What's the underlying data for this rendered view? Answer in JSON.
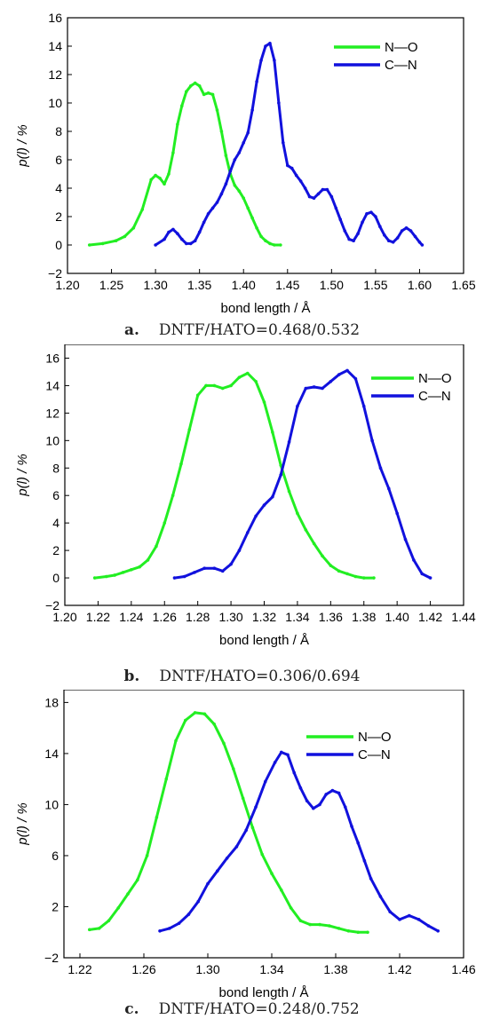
{
  "chart_data": [
    {
      "type": "line",
      "panel_label": "a.",
      "caption": "DNTF/HATO=0.468/0.532",
      "xlabel": "bond length / Å",
      "ylabel": "p(l) / %",
      "xlim": [
        1.2,
        1.65
      ],
      "ylim": [
        -2,
        16
      ],
      "xticks": [
        "1.20",
        "1.25",
        "1.30",
        "1.35",
        "1.40",
        "1.45",
        "1.50",
        "1.55",
        "1.60",
        "1.65"
      ],
      "yticks": [
        "−2",
        "0",
        "2",
        "4",
        "6",
        "8",
        "10",
        "12",
        "14",
        "16"
      ],
      "legend_position": "top-right",
      "series": [
        {
          "name": "N—O",
          "color": "#22ee22",
          "x": [
            1.225,
            1.24,
            1.255,
            1.265,
            1.275,
            1.285,
            1.295,
            1.3,
            1.305,
            1.31,
            1.315,
            1.32,
            1.325,
            1.33,
            1.335,
            1.34,
            1.345,
            1.35,
            1.355,
            1.36,
            1.365,
            1.37,
            1.375,
            1.38,
            1.385,
            1.39,
            1.395,
            1.4,
            1.405,
            1.41,
            1.415,
            1.42,
            1.425,
            1.43,
            1.435,
            1.442
          ],
          "y": [
            0.0,
            0.1,
            0.3,
            0.6,
            1.2,
            2.5,
            4.6,
            4.9,
            4.7,
            4.3,
            5.0,
            6.5,
            8.5,
            9.8,
            10.8,
            11.2,
            11.4,
            11.2,
            10.6,
            10.7,
            10.6,
            9.5,
            8.0,
            6.3,
            5.0,
            4.2,
            3.8,
            3.3,
            2.6,
            1.9,
            1.2,
            0.6,
            0.3,
            0.1,
            0.0,
            0.0
          ]
        },
        {
          "name": "C—N",
          "color": "#1111dd",
          "x": [
            1.3,
            1.31,
            1.315,
            1.32,
            1.325,
            1.33,
            1.335,
            1.34,
            1.345,
            1.35,
            1.355,
            1.36,
            1.365,
            1.37,
            1.375,
            1.38,
            1.385,
            1.39,
            1.395,
            1.4,
            1.405,
            1.41,
            1.415,
            1.42,
            1.425,
            1.43,
            1.435,
            1.44,
            1.445,
            1.45,
            1.455,
            1.46,
            1.465,
            1.47,
            1.475,
            1.48,
            1.485,
            1.49,
            1.495,
            1.5,
            1.505,
            1.51,
            1.515,
            1.52,
            1.525,
            1.53,
            1.535,
            1.54,
            1.545,
            1.55,
            1.555,
            1.56,
            1.565,
            1.57,
            1.575,
            1.58,
            1.585,
            1.59,
            1.595,
            1.6,
            1.603
          ],
          "y": [
            0.0,
            0.4,
            0.9,
            1.1,
            0.8,
            0.4,
            0.1,
            0.1,
            0.3,
            0.9,
            1.6,
            2.2,
            2.6,
            3.0,
            3.6,
            4.3,
            5.2,
            6.0,
            6.5,
            7.2,
            7.9,
            9.5,
            11.5,
            13.0,
            14.0,
            14.2,
            13.0,
            10.0,
            7.2,
            5.6,
            5.4,
            4.9,
            4.5,
            4.0,
            3.4,
            3.3,
            3.6,
            3.9,
            3.9,
            3.4,
            2.6,
            1.8,
            1.0,
            0.4,
            0.3,
            0.8,
            1.6,
            2.2,
            2.3,
            2.0,
            1.3,
            0.7,
            0.3,
            0.2,
            0.5,
            1.0,
            1.2,
            1.0,
            0.6,
            0.2,
            0.0
          ]
        }
      ]
    },
    {
      "type": "line",
      "panel_label": "b.",
      "caption": "DNTF/HATO=0.306/0.694",
      "xlabel": "bond length / Å",
      "ylabel": "p(l) / %",
      "xlim": [
        1.2,
        1.44
      ],
      "ylim": [
        -2,
        17
      ],
      "xticks": [
        "1.20",
        "1.22",
        "1.24",
        "1.26",
        "1.28",
        "1.30",
        "1.32",
        "1.34",
        "1.36",
        "1.38",
        "1.40",
        "1.42",
        "1.44"
      ],
      "yticks": [
        "−2",
        "0",
        "2",
        "4",
        "6",
        "8",
        "10",
        "12",
        "14",
        "16"
      ],
      "legend_position": "top-right",
      "series": [
        {
          "name": "N—O",
          "color": "#22ee22",
          "x": [
            1.218,
            1.225,
            1.23,
            1.235,
            1.24,
            1.245,
            1.25,
            1.255,
            1.26,
            1.265,
            1.27,
            1.275,
            1.28,
            1.285,
            1.29,
            1.295,
            1.3,
            1.305,
            1.31,
            1.315,
            1.32,
            1.325,
            1.33,
            1.335,
            1.34,
            1.345,
            1.35,
            1.355,
            1.36,
            1.365,
            1.37,
            1.375,
            1.38,
            1.386
          ],
          "y": [
            0.0,
            0.1,
            0.2,
            0.4,
            0.6,
            0.8,
            1.3,
            2.3,
            4.0,
            6.0,
            8.3,
            10.8,
            13.3,
            14.0,
            14.0,
            13.8,
            14.0,
            14.6,
            14.9,
            14.3,
            12.8,
            10.6,
            8.2,
            6.3,
            4.7,
            3.5,
            2.5,
            1.6,
            0.9,
            0.5,
            0.3,
            0.1,
            0.0,
            0.0
          ]
        },
        {
          "name": "C—N",
          "color": "#1111dd",
          "x": [
            1.266,
            1.272,
            1.278,
            1.284,
            1.29,
            1.295,
            1.3,
            1.305,
            1.31,
            1.315,
            1.32,
            1.325,
            1.33,
            1.335,
            1.34,
            1.345,
            1.35,
            1.355,
            1.36,
            1.365,
            1.37,
            1.375,
            1.38,
            1.385,
            1.39,
            1.395,
            1.4,
            1.405,
            1.41,
            1.415,
            1.42
          ],
          "y": [
            0.0,
            0.1,
            0.4,
            0.7,
            0.7,
            0.5,
            1.0,
            2.0,
            3.3,
            4.5,
            5.3,
            5.9,
            7.5,
            9.9,
            12.5,
            13.8,
            13.9,
            13.8,
            14.3,
            14.8,
            15.1,
            14.5,
            12.5,
            10.0,
            8.0,
            6.5,
            4.7,
            2.8,
            1.3,
            0.3,
            0.0
          ]
        }
      ]
    },
    {
      "type": "line",
      "panel_label": "c.",
      "caption": "DNTF/HATO=0.248/0.752",
      "xlabel": "bond length / Å",
      "ylabel": "p(l) / %",
      "xlim": [
        1.21,
        1.46
      ],
      "ylim": [
        -2,
        19
      ],
      "xticks": [
        "1.22",
        "1.26",
        "1.30",
        "1.34",
        "1.38",
        "1.42",
        "1.46"
      ],
      "yticks": [
        "−2",
        "2",
        "6",
        "10",
        "14",
        "18"
      ],
      "legend_position": "top-right",
      "series": [
        {
          "name": "N—O",
          "color": "#22ee22",
          "x": [
            1.226,
            1.232,
            1.238,
            1.244,
            1.25,
            1.256,
            1.262,
            1.268,
            1.274,
            1.28,
            1.286,
            1.292,
            1.298,
            1.304,
            1.31,
            1.316,
            1.322,
            1.328,
            1.334,
            1.34,
            1.346,
            1.352,
            1.358,
            1.364,
            1.37,
            1.376,
            1.382,
            1.388,
            1.394,
            1.4
          ],
          "y": [
            0.2,
            0.3,
            0.9,
            1.9,
            3.0,
            4.1,
            6.0,
            9.0,
            12.0,
            15.0,
            16.6,
            17.2,
            17.1,
            16.3,
            14.8,
            12.8,
            10.5,
            8.2,
            6.1,
            4.6,
            3.3,
            1.9,
            0.9,
            0.6,
            0.6,
            0.5,
            0.3,
            0.1,
            0.0,
            0.0
          ]
        },
        {
          "name": "C—N",
          "color": "#1111dd",
          "x": [
            1.27,
            1.276,
            1.282,
            1.288,
            1.294,
            1.3,
            1.306,
            1.312,
            1.318,
            1.324,
            1.33,
            1.336,
            1.342,
            1.346,
            1.35,
            1.354,
            1.358,
            1.362,
            1.366,
            1.37,
            1.374,
            1.378,
            1.382,
            1.386,
            1.39,
            1.394,
            1.398,
            1.402,
            1.408,
            1.414,
            1.42,
            1.426,
            1.432,
            1.438,
            1.444
          ],
          "y": [
            0.1,
            0.3,
            0.7,
            1.4,
            2.4,
            3.8,
            4.8,
            5.8,
            6.7,
            8.0,
            9.8,
            11.8,
            13.3,
            14.1,
            13.9,
            12.5,
            11.3,
            10.3,
            9.7,
            10.0,
            10.8,
            11.1,
            10.9,
            9.8,
            8.3,
            7.0,
            5.6,
            4.2,
            2.8,
            1.6,
            1.0,
            1.3,
            1.0,
            0.5,
            0.1
          ]
        }
      ]
    }
  ]
}
